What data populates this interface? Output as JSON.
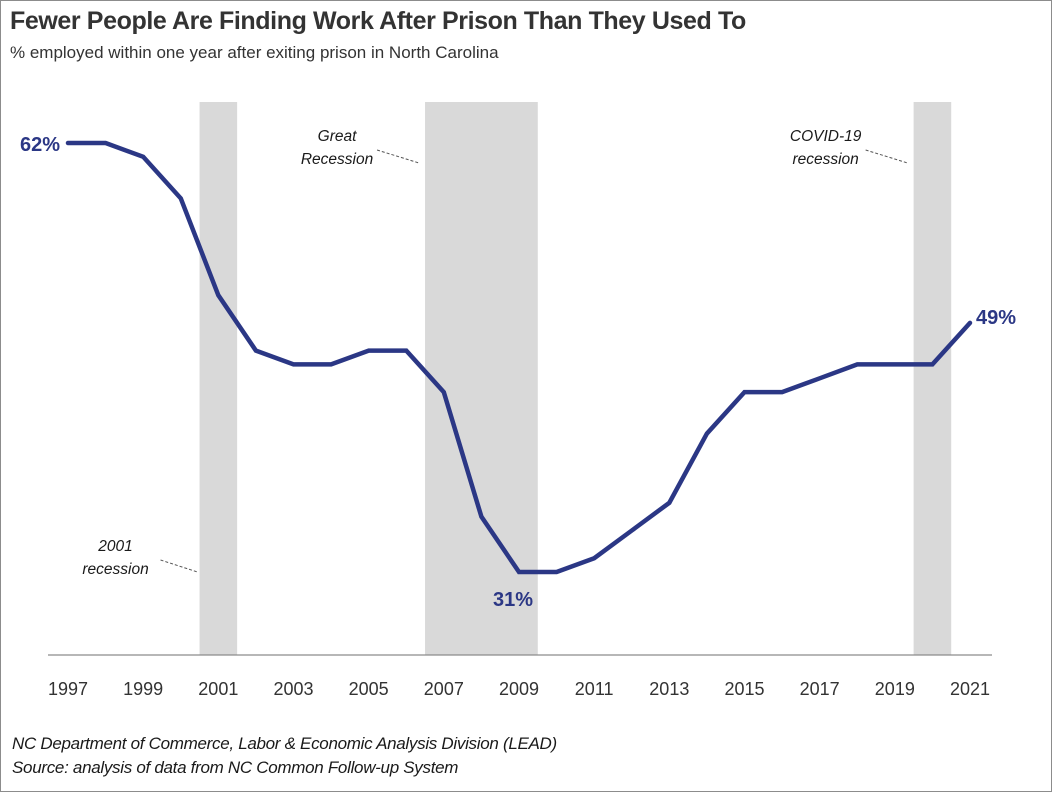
{
  "header": {
    "title": "Fewer People Are Finding Work After Prison Than They Used To",
    "subtitle": "% employed within one year after exiting prison in North Carolina"
  },
  "footer": {
    "line1": "NC Department of Commerce, Labor & Economic Analysis Division (LEAD)",
    "line2": "Source: analysis of data from NC Common Follow-up System"
  },
  "colors": {
    "line": "#2b3785",
    "recession_band": "#d9d9d9",
    "axis": "#8c8c8c",
    "text": "#333333"
  },
  "chart_data": {
    "type": "line",
    "title": "Fewer People Are Finding Work After Prison Than They Used To",
    "subtitle": "% employed within one year after exiting prison in North Carolina",
    "xlabel": "",
    "ylabel": "% employed",
    "x": [
      1997,
      1998,
      1999,
      2000,
      2001,
      2002,
      2003,
      2004,
      2005,
      2006,
      2007,
      2008,
      2009,
      2010,
      2011,
      2012,
      2013,
      2014,
      2015,
      2016,
      2017,
      2018,
      2019,
      2020,
      2021
    ],
    "series": [
      {
        "name": "% employed within one year after exiting prison",
        "values": [
          62,
          62,
          61,
          58,
          51,
          47,
          46,
          46,
          47,
          47,
          44,
          35,
          31,
          31,
          32,
          34,
          36,
          41,
          44,
          44,
          45,
          46,
          46,
          46,
          49
        ]
      }
    ],
    "xticks": [
      "1997",
      "1999",
      "2001",
      "2003",
      "2005",
      "2007",
      "2009",
      "2011",
      "2013",
      "2015",
      "2017",
      "2019",
      "2021"
    ],
    "xlim": [
      1997,
      2021
    ],
    "ylim": [
      22,
      65
    ],
    "grid": false,
    "y_axis_visible": false,
    "data_labels": [
      {
        "x": 1997,
        "text": "62%",
        "position": "left"
      },
      {
        "x": 2009,
        "text": "31%",
        "position": "below"
      },
      {
        "x": 2021,
        "text": "49%",
        "position": "right"
      }
    ],
    "shaded_regions": [
      {
        "name": "2001 recession",
        "label_lines": [
          "2001",
          "recession"
        ],
        "x_start": 2000.5,
        "x_end": 2001.5,
        "label_position": "bottom-left"
      },
      {
        "name": "Great Recession",
        "label_lines": [
          "Great",
          "Recession"
        ],
        "x_start": 2006.5,
        "x_end": 2009.5,
        "label_position": "top-left"
      },
      {
        "name": "COVID-19 recession",
        "label_lines": [
          "COVID-19",
          "recession"
        ],
        "x_start": 2019.5,
        "x_end": 2020.5,
        "label_position": "top-left"
      }
    ],
    "legend": "none"
  }
}
